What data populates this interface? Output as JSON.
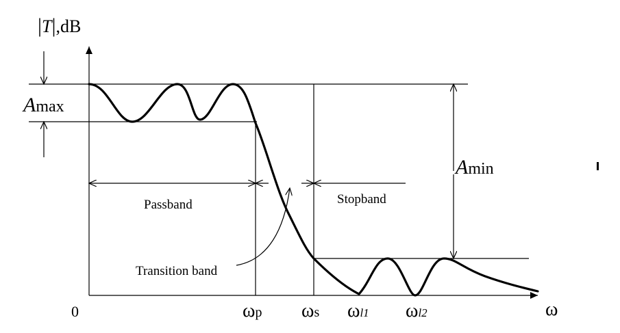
{
  "axis": {
    "y_label_abs": "|T|",
    "y_label_italic": "T",
    "y_label_unit": ",dB",
    "x_label": "ω",
    "origin": "0"
  },
  "ticks": {
    "wp": {
      "main": "ω",
      "sub": "p"
    },
    "ws": {
      "main": "ω",
      "sub": "s"
    },
    "wl1": {
      "main": "ω",
      "sub": "l1"
    },
    "wl2": {
      "main": "ω",
      "sub": "l2"
    }
  },
  "labels": {
    "amax_italic": "A",
    "amax_sub": "max",
    "amin_italic": "A",
    "amin_sub": "min",
    "passband": "Passband",
    "stopband": "Stopband",
    "transition_band": "Transition band"
  }
}
